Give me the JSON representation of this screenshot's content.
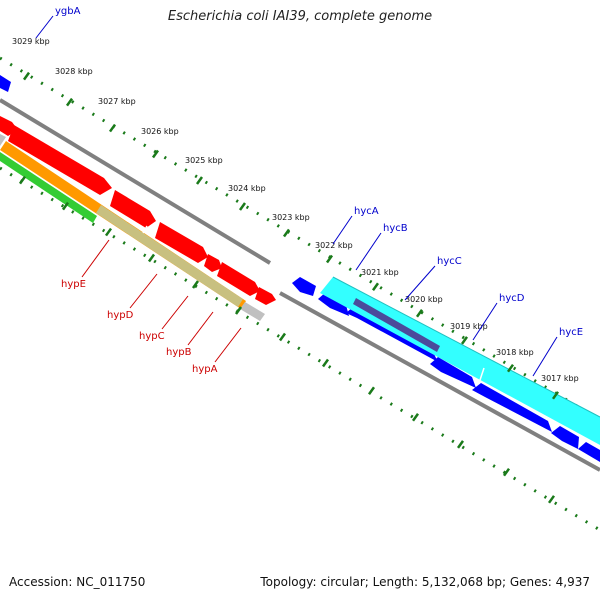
{
  "title": "Escherichia coli IAI39, complete genome",
  "footer": {
    "accession": "Accession: NC_011750",
    "topology": "Topology: circular; Length: 5,132,068 bp; Genes: 4,937"
  },
  "scale_labels": [
    "3029 kbp",
    "3028 kbp",
    "3027 kbp",
    "3026 kbp",
    "3025 kbp",
    "3024 kbp",
    "3023 kbp",
    "3022 kbp",
    "3021 kbp",
    "3020 kbp",
    "3019 kbp",
    "3018 kbp",
    "3017 kbp"
  ],
  "gene_labels": {
    "top": [
      "ygbA",
      "hycA",
      "hycB",
      "hycC",
      "hycD",
      "hycE"
    ],
    "bottom": [
      "hypE",
      "hypD",
      "hypC",
      "hypB",
      "hypA"
    ]
  },
  "colors": {
    "forward_genes": "#ff0000",
    "reverse_genes": "#0000ff",
    "cog_cyan": "#33ffff",
    "cog_orange": "#ff9900",
    "cog_khaki": "#c8c080",
    "cog_green": "#33cc33",
    "cog_grey": "#c0c0c0",
    "cog_purple": "#4b4b9b",
    "backbone": "#808080",
    "ticks": "#1a7a1a",
    "label_top": "#0000cc",
    "label_bottom": "#cc0000"
  }
}
